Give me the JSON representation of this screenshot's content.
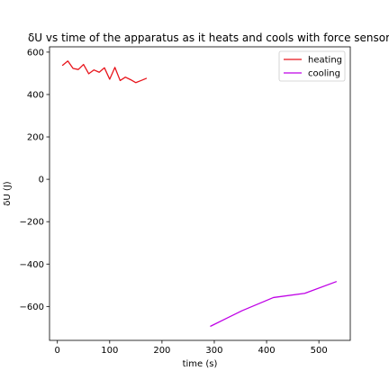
{
  "chart_data": {
    "type": "line",
    "title": "δU vs time of the apparatus as it heats and cools with force sensor",
    "xlabel": "time (s)",
    "ylabel": "δU (J)",
    "xlim": [
      -15,
      560
    ],
    "ylim": [
      -760,
      625
    ],
    "xticks": [
      0,
      100,
      200,
      300,
      400,
      500
    ],
    "xtick_labels": [
      "0",
      "100",
      "200",
      "300",
      "400",
      "500"
    ],
    "yticks": [
      600,
      400,
      200,
      0,
      -200,
      -400,
      -600
    ],
    "ytick_labels": [
      "600",
      "400",
      "200",
      "0",
      "−200",
      "−400",
      "−600"
    ],
    "grid": false,
    "legend_position": "top-right",
    "series": [
      {
        "name": "heating",
        "color": "#e8141b",
        "x": [
          10,
          20,
          30,
          40,
          50,
          60,
          70,
          80,
          90,
          100,
          110,
          120,
          130,
          140,
          150,
          160,
          170
        ],
        "y": [
          538,
          558,
          523,
          518,
          542,
          498,
          516,
          505,
          526,
          472,
          528,
          466,
          482,
          470,
          456,
          466,
          476
        ]
      },
      {
        "name": "cooling",
        "color": "#bf00e6",
        "x": [
          293,
          353,
          413,
          473,
          533
        ],
        "y": [
          -693,
          -620,
          -558,
          -538,
          -483
        ]
      }
    ]
  }
}
